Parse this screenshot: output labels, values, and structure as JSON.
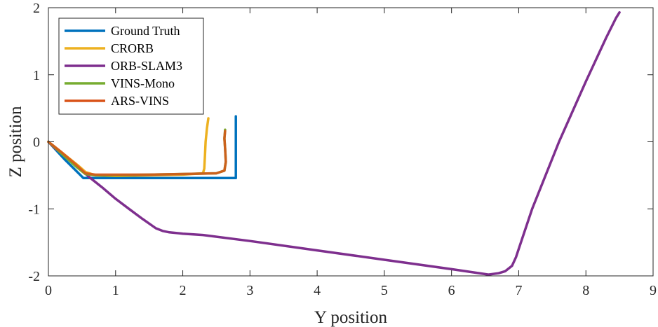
{
  "chart_data": {
    "type": "line",
    "title": "",
    "xlabel": "Y position",
    "ylabel": "Z position",
    "xlim": [
      0,
      9
    ],
    "ylim": [
      -2,
      2
    ],
    "xticks": [
      0,
      1,
      2,
      3,
      4,
      5,
      6,
      7,
      8,
      9
    ],
    "yticks": [
      -2,
      -1,
      0,
      1,
      2
    ],
    "xtick_labels": [
      "0",
      "1",
      "2",
      "3",
      "4",
      "5",
      "6",
      "7",
      "8",
      "9"
    ],
    "ytick_labels": [
      "-2",
      "-1",
      "0",
      "1",
      "2"
    ],
    "grid": false,
    "legend_position": "top-left",
    "series": [
      {
        "name": "Ground Truth",
        "color": "#0072BD",
        "x": [
          0,
          0.25,
          0.52,
          1.0,
          2.0,
          2.79,
          2.79
        ],
        "y": [
          0,
          -0.27,
          -0.54,
          -0.54,
          -0.54,
          -0.54,
          0.38
        ]
      },
      {
        "name": "CRORB",
        "color": "#EDB120",
        "x": [
          0,
          0.15,
          0.3,
          0.45,
          0.55,
          0.7,
          1.0,
          1.5,
          2.0,
          2.3,
          2.32,
          2.33,
          2.34,
          2.36,
          2.38
        ],
        "y": [
          0,
          -0.12,
          -0.24,
          -0.36,
          -0.45,
          -0.5,
          -0.51,
          -0.5,
          -0.49,
          -0.47,
          -0.4,
          -0.2,
          0.0,
          0.2,
          0.35
        ]
      },
      {
        "name": "ORB-SLAM3",
        "color": "#7E2F8E",
        "x": [
          0,
          0.1,
          0.3,
          0.45,
          0.6,
          0.8,
          1.0,
          1.2,
          1.4,
          1.6,
          1.7,
          1.8,
          2.0,
          2.3,
          3.0,
          4.0,
          5.0,
          6.0,
          6.55,
          6.7,
          6.8,
          6.9,
          6.96,
          7.0,
          7.2,
          7.6,
          8.0,
          8.3,
          8.45,
          8.5
        ],
        "y": [
          0,
          -0.1,
          -0.25,
          -0.38,
          -0.52,
          -0.68,
          -0.85,
          -1.0,
          -1.15,
          -1.29,
          -1.33,
          -1.35,
          -1.37,
          -1.39,
          -1.48,
          -1.62,
          -1.76,
          -1.9,
          -1.98,
          -1.96,
          -1.93,
          -1.85,
          -1.72,
          -1.6,
          -1.0,
          0.0,
          0.9,
          1.55,
          1.85,
          1.93
        ]
      },
      {
        "name": "VINS-Mono",
        "color": "#77AC30",
        "x": [
          0,
          0.2,
          0.4,
          0.55,
          0.7,
          1.0,
          1.5,
          2.0,
          2.5,
          2.62,
          2.64,
          2.63,
          2.62,
          2.63
        ],
        "y": [
          0,
          -0.18,
          -0.36,
          -0.48,
          -0.5,
          -0.5,
          -0.49,
          -0.48,
          -0.47,
          -0.43,
          -0.3,
          -0.1,
          0.05,
          0.18
        ]
      },
      {
        "name": "ARS-VINS",
        "color": "#D95319",
        "x": [
          0,
          0.2,
          0.4,
          0.55,
          0.7,
          1.0,
          1.5,
          2.0,
          2.5,
          2.62,
          2.64,
          2.63,
          2.62,
          2.63
        ],
        "y": [
          0,
          -0.16,
          -0.33,
          -0.47,
          -0.49,
          -0.49,
          -0.49,
          -0.48,
          -0.47,
          -0.43,
          -0.3,
          -0.1,
          0.05,
          0.16
        ]
      }
    ]
  }
}
